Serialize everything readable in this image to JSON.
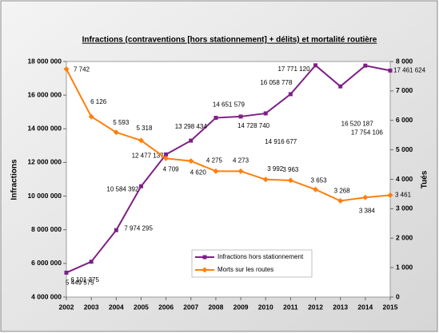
{
  "chart_data": {
    "type": "line",
    "title": "Infractions (contraventions [hors stationnement] + délits) et mortalité routière",
    "y_label": "Infractions",
    "y2_label": "Tués",
    "categories": [
      "2002",
      "2003",
      "2004",
      "2005",
      "2006",
      "2007",
      "2008",
      "2009",
      "2010",
      "2011",
      "2012",
      "2013",
      "2014",
      "2015"
    ],
    "ylim": [
      4000000,
      18000000
    ],
    "yticks": [
      {
        "value": 4000000,
        "label": "4 000 000"
      },
      {
        "value": 6000000,
        "label": "6 000 000"
      },
      {
        "value": 8000000,
        "label": "8 000 000"
      },
      {
        "value": 10000000,
        "label": "10 000 000"
      },
      {
        "value": 12000000,
        "label": "12 000 000"
      },
      {
        "value": 14000000,
        "label": "14 000 000"
      },
      {
        "value": 16000000,
        "label": "16 000 000"
      },
      {
        "value": 18000000,
        "label": "18 000 000"
      }
    ],
    "y2lim": [
      0,
      8000
    ],
    "y2ticks": [
      0,
      {
        "value": 1000,
        "label": "1 000"
      },
      {
        "value": 2000,
        "label": "2 000"
      },
      {
        "value": 3000,
        "label": "3 000"
      },
      {
        "value": 4000,
        "label": "4 000"
      },
      {
        "value": 5000,
        "label": "5 000"
      },
      {
        "value": 6000,
        "label": "6 000"
      },
      {
        "value": 7000,
        "label": "7 000"
      },
      {
        "value": 8000,
        "label": "8 000"
      }
    ],
    "legend": "lower center",
    "series": [
      {
        "name": "Infractions hors stationnement",
        "color": "#7f1f86",
        "marker": "square",
        "values": [
          5449575,
          6101375,
          7974295,
          10584392,
          12477137,
          13298434,
          14651579,
          14728740,
          14916677,
          16058778,
          17771120,
          16520187,
          17754106,
          17461624
        ],
        "value_labels": [
          "5 449 575",
          "6 101 375",
          "7 974 295",
          "10 584 392",
          "12 477 137",
          "13 298 434",
          "14 651 579",
          "14 728 740",
          "14 916 677",
          "16 058 778",
          "17 771 120",
          "16 520 187",
          "17 754 106",
          "17 461 624"
        ]
      },
      {
        "name": "Morts sur les routes",
        "color": "#ff7f0e",
        "marker": "diamond",
        "axis": "y2",
        "values": [
          7742,
          6126,
          5593,
          5318,
          4709,
          4620,
          4275,
          4273,
          3992,
          3963,
          3653,
          3268,
          3384,
          3461
        ],
        "value_labels": [
          "7 742",
          "6 126",
          "5 593",
          "5 318",
          "4 709",
          "4 620",
          "4 275",
          "4 273",
          "3 992",
          "3 963",
          "3 653",
          "3 268",
          "3 384",
          "3 461"
        ]
      }
    ]
  }
}
